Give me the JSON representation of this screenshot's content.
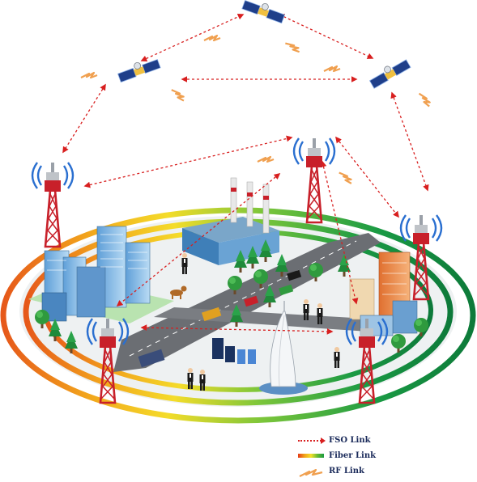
{
  "legend": {
    "fso": "FSO Link",
    "fiber": "Fiber Link",
    "rf": "RF Link"
  },
  "colors": {
    "fso": "#d81f1f",
    "rf": "#f0a050",
    "tower": "#c8202a",
    "signal": "#2a6fd0"
  },
  "icons": [
    "satellite-icon",
    "cell-tower-icon",
    "factory-icon",
    "building-icon",
    "hotel-icon",
    "server-icon",
    "person-icon",
    "vehicle-icon",
    "tree-icon",
    "dog-icon"
  ]
}
